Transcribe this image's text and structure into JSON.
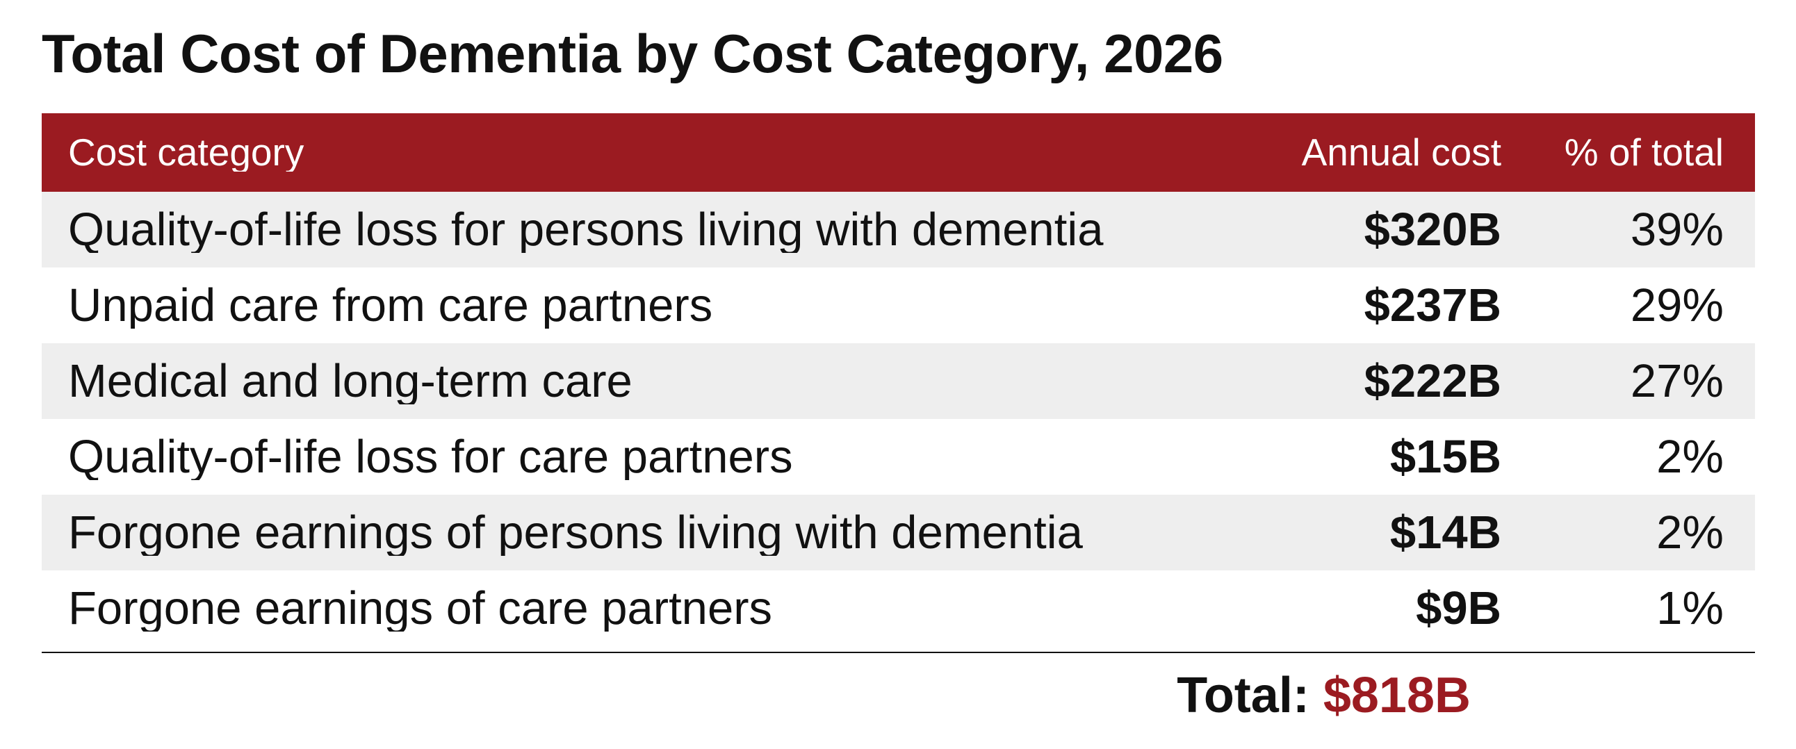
{
  "colors": {
    "header_bg": "#9b1b21",
    "row_shade": "#eeeeee",
    "total_value": "#9b1b21"
  },
  "chart_data": {
    "type": "table",
    "title": "Total Cost of Dementia by Cost Category, 2026",
    "columns": [
      "Cost category",
      "Annual cost",
      "% of total"
    ],
    "rows": [
      {
        "category": "Quality-of-life loss for persons living with dementia",
        "cost": "$320B",
        "pct": "39%"
      },
      {
        "category": "Unpaid care from care partners",
        "cost": "$237B",
        "pct": "29%"
      },
      {
        "category": "Medical and long-term care",
        "cost": "$222B",
        "pct": "27%"
      },
      {
        "category": "Quality-of-life loss for care partners",
        "cost": "$15B",
        "pct": "2%"
      },
      {
        "category": "Forgone earnings of persons living with dementia",
        "cost": "$14B",
        "pct": "2%"
      },
      {
        "category": "Forgone earnings of care partners",
        "cost": "$9B",
        "pct": "1%"
      }
    ],
    "total_label": "Total:",
    "total_value": "$818B"
  }
}
